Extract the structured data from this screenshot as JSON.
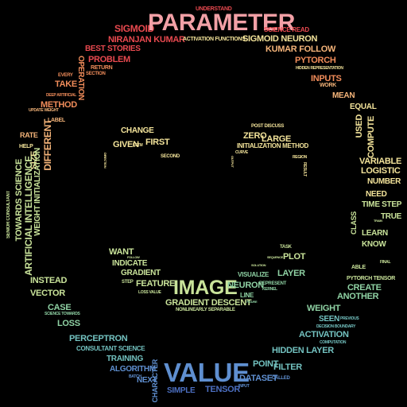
{
  "palette": {
    "pink": "#f2a0a6",
    "red": "#e8494f",
    "orange": "#f08c5a",
    "peach": "#f6b57a",
    "cream": "#f3e39a",
    "lime": "#c9e39a",
    "green": "#8fd2a4",
    "teal": "#73c2c0",
    "blue": "#5f8fd0",
    "navy": "#4c6fc1"
  },
  "words": {
    "parameter": "PARAMETER",
    "understand": "UNDERSTAND",
    "sigmoid": "SIGMOID",
    "science_read": "SCIENCE READ",
    "niranjan_kumar": "NIRANJAN KUMAR",
    "activation_functions": "ACTIVATION FUNCTIONS",
    "sigmoid_neuron": "SIGMOID NEURON",
    "kumar_follow": "KUMAR FOLLOW",
    "best_stories": "BEST STORIES",
    "problem": "PROBLEM",
    "return": "RETURN",
    "pytorch": "PYTORCH",
    "hidden_representation": "HIDDEN REPRESENTATION",
    "section": "SECTION",
    "operation": "OPERATION",
    "inputs": "INPUTS",
    "take": "TAKE",
    "work": "WORK",
    "every": "EVERY",
    "mean": "MEAN",
    "deep_artificial": "DEEP ARTIFICIAL",
    "method": "METHOD",
    "equal": "EQUAL",
    "update_weight": "UPDATE WEIGHT",
    "used": "USED",
    "label": "LABEL",
    "compute": "COMPUTE",
    "change": "CHANGE",
    "post_discuss": "POST DISCUSS",
    "zero": "ZERO",
    "large": "LARGE",
    "given": "GIVEN",
    "first": "FIRST",
    "initialization_method": "INITIALIZATION METHOD",
    "rate": "RATE",
    "help": "HELP",
    "variable": "VARIABLE",
    "logistic": "LOGISTIC",
    "size": "SIZE",
    "towards_science": "TOWARDS SCIENCE",
    "artificial_intelligence": "ARTIFICIAL INTELLIGENCE",
    "weight_initialization": "WEIGHT INITIALIZATION",
    "different": "DIFFERENT",
    "number": "NUMBER",
    "need": "NEED",
    "time_step": "TIME STEP",
    "true": "TRUE",
    "class": "CLASS",
    "learn": "LEARN",
    "know": "KNOW",
    "senior_consultant": "SENIOR CONSULTANT",
    "want": "WANT",
    "task": "TASK",
    "plot": "PLOT",
    "indicate": "INDICATE",
    "gradient": "GRADIENT",
    "layer": "LAYER",
    "visualize": "VISUALIZE",
    "able": "ABLE",
    "pytorch_tensor": "PYTORCH TENSOR",
    "create": "CREATE",
    "another": "ANOTHER",
    "instead": "INSTEAD",
    "vector": "VECTOR",
    "feature": "FEATURE",
    "image": "IMAGE",
    "neuron": "NEURON",
    "represent": "REPRESENT",
    "kernel": "KERNEL",
    "line": "LINE",
    "gradient_descent": "GRADIENT DESCENT",
    "nonlinearly_separable": "NONLINEARLY SEPARABLE",
    "case": "CASE",
    "science_towards": "SCIENCE TOWARDS",
    "loss": "LOSS",
    "weight": "WEIGHT",
    "seen": "SEEN",
    "previous": "PREVIOUS",
    "decision_boundary": "DECISION BOUNDARY",
    "perceptron": "PERCEPTRON",
    "activation": "ACTIVATION",
    "computation": "COMPUTATION",
    "consultant_science": "CONSULTANT SCIENCE",
    "hidden_layer": "HIDDEN LAYER",
    "training": "TRAINING",
    "algorithm": "ALGORITHM",
    "point": "POINT",
    "filter": "FILTER",
    "value": "VALUE",
    "next": "NEXT",
    "character": "CHARACTER",
    "dataset": "DATASET",
    "called": "CALLED",
    "simple": "SIMPLE",
    "tensor": "TENSOR",
    "lstm": "LSTM",
    "curve": "CURVE",
    "region": "REGION",
    "result": "RESULT",
    "second": "SECOND",
    "direction": "DIRECTION",
    "step": "STEP",
    "loss_value": "LOSS VALUE",
    "follow": "FOLLOW",
    "output": "OUTPUT",
    "solution": "SOLUTION",
    "sequence": "SEQUENCE",
    "figure": "FIGURE",
    "batch": "BATCH",
    "input": "INPUT",
    "train": "TRAIN",
    "final": "FINAL"
  }
}
